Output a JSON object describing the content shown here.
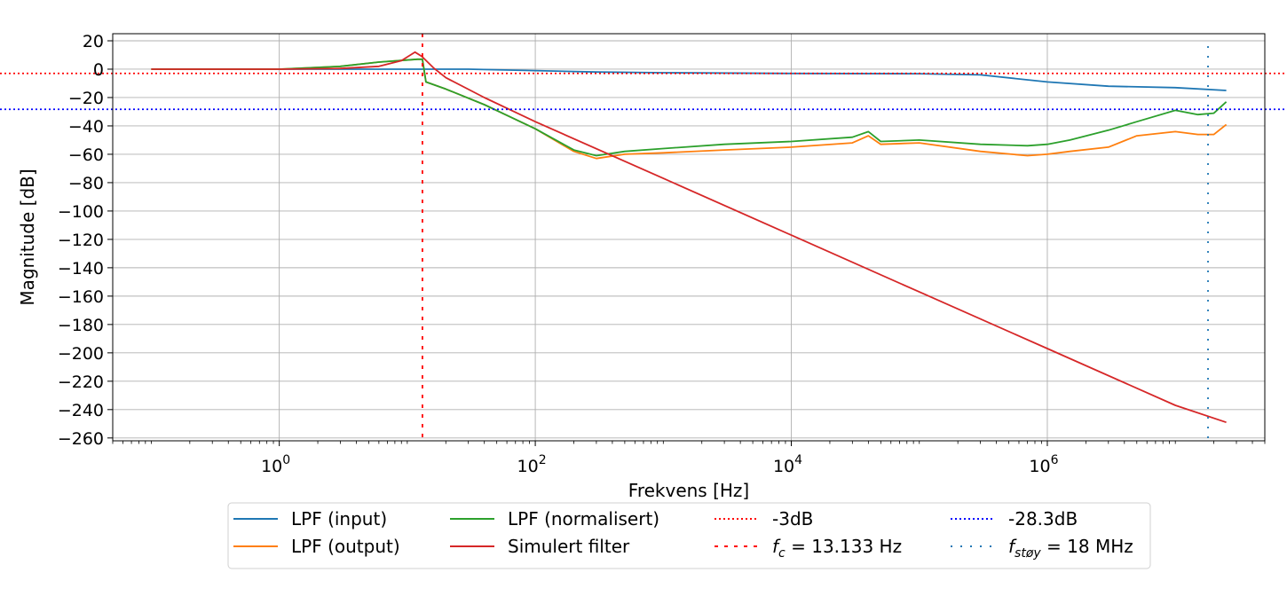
{
  "chart_data": {
    "type": "line",
    "xscale": "log",
    "xlabel": "Frekvens [Hz]",
    "ylabel": "Magnitude [dB]",
    "xlim": [
      0.05,
      50000000
    ],
    "ylim": [
      -262,
      25
    ],
    "xticks": [
      {
        "value": 1,
        "base": "10",
        "exp": "0"
      },
      {
        "value": 100,
        "base": "10",
        "exp": "2"
      },
      {
        "value": 10000,
        "base": "10",
        "exp": "4"
      },
      {
        "value": 1000000,
        "base": "10",
        "exp": "6"
      }
    ],
    "yticks": [
      20,
      0,
      -20,
      -40,
      -60,
      -80,
      -100,
      -120,
      -140,
      -160,
      -180,
      -200,
      -220,
      -240,
      -260
    ],
    "ytick_labels": [
      "20",
      "0",
      "−20",
      "−40",
      "−60",
      "−80",
      "−100",
      "−120",
      "−140",
      "−160",
      "−180",
      "−200",
      "−220",
      "−240",
      "−260"
    ],
    "grid": true,
    "legend_placement": "below",
    "series": [
      {
        "name": "LPF (input)",
        "color": "#1f77b4",
        "style": "solid",
        "x": [
          0.1,
          1,
          10,
          30,
          100,
          300,
          1000,
          10000,
          100000,
          300000,
          1000000,
          3000000,
          10000000,
          25000000
        ],
        "y": [
          0,
          0,
          0,
          0,
          -1,
          -2,
          -2.5,
          -3,
          -3.2,
          -4,
          -9,
          -12,
          -13,
          -15
        ]
      },
      {
        "name": "LPF (output)",
        "color": "#ff7f0e",
        "style": "solid",
        "x": [
          0.1,
          1,
          3,
          6,
          12,
          13.133,
          14,
          20,
          40,
          100,
          200,
          300,
          500,
          1000,
          3000,
          10000,
          30000,
          40000,
          50000,
          100000,
          300000,
          700000,
          1000000,
          1500000,
          3000000,
          5000000,
          10000000,
          15000000,
          20000000,
          25000000
        ],
        "y": [
          0,
          0,
          2,
          5,
          7,
          7,
          -9,
          -14,
          -25,
          -42,
          -58,
          -63,
          -60,
          -59,
          -57,
          -55,
          -52,
          -47,
          -53,
          -52,
          -58,
          -61,
          -60,
          -58,
          -55,
          -47,
          -44,
          -46,
          -46,
          -39
        ]
      },
      {
        "name": "LPF (normalisert)",
        "color": "#2ca02c",
        "style": "solid",
        "x": [
          0.1,
          1,
          3,
          6,
          12,
          13.133,
          14,
          20,
          40,
          100,
          200,
          300,
          500,
          1000,
          3000,
          10000,
          30000,
          40000,
          50000,
          100000,
          300000,
          700000,
          1000000,
          1500000,
          3000000,
          5000000,
          10000000,
          15000000,
          20000000,
          25000000
        ],
        "y": [
          0,
          0,
          2,
          5,
          7,
          7,
          -9,
          -14,
          -25,
          -42,
          -57,
          -61,
          -58,
          -56,
          -53,
          -51,
          -48,
          -44,
          -51,
          -50,
          -53,
          -54,
          -53,
          -50,
          -43,
          -37,
          -29,
          -32,
          -31,
          -23
        ]
      },
      {
        "name": "Simulert filter",
        "color": "#d62728",
        "style": "solid",
        "x": [
          0.1,
          1,
          3,
          6,
          9,
          11.5,
          13,
          16,
          20,
          40,
          100,
          1000,
          10000,
          100000,
          1000000,
          10000000,
          25000000
        ],
        "y": [
          0,
          0,
          0.5,
          2,
          6,
          12,
          9,
          1,
          -6,
          -20,
          -37,
          -77,
          -117,
          -157,
          -197,
          -237,
          -249
        ]
      }
    ],
    "reference_lines": [
      {
        "name": "-3dB",
        "orientation": "horizontal",
        "value": -3,
        "color": "#ff0000",
        "style": "dotted"
      },
      {
        "name": "$f_c = 13.133$ Hz",
        "label_math": "f",
        "label_sub": "c",
        "label_rest": " = 13.133 Hz",
        "orientation": "vertical",
        "value": 13.133,
        "color": "#ff0000",
        "style": "dashed"
      },
      {
        "name": "-28.3dB",
        "orientation": "horizontal",
        "value": -28.3,
        "color": "#0000ff",
        "style": "dotted"
      },
      {
        "name": "$f_{støy} = 18$ MHz",
        "label_math": "f",
        "label_sub": "støy",
        "label_rest": " = 18 MHz",
        "orientation": "vertical",
        "value": 18000000,
        "color": "#1f77b4",
        "style": "sparse-dotted"
      }
    ],
    "legend": {
      "columns": [
        [
          "LPF (input)",
          "LPF (output)"
        ],
        [
          "LPF (normalisert)",
          "Simulert filter"
        ],
        [
          "-3dB",
          "f_c"
        ],
        [
          "-28.3dB",
          "f_stoy"
        ]
      ]
    }
  }
}
